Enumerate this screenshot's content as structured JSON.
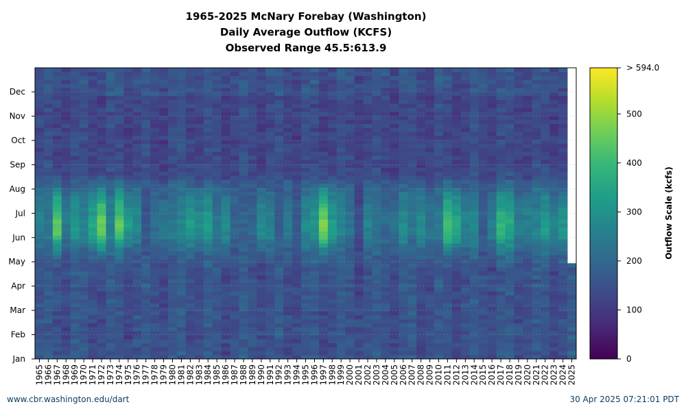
{
  "chart_data": {
    "type": "heatmap",
    "title": [
      "1965-2025 McNary Forebay (Washington)",
      "Daily Average Outflow (KCFS)",
      "Observed Range 45.5:613.9"
    ],
    "x": [
      "1965",
      "1966",
      "1967",
      "1968",
      "1969",
      "1970",
      "1971",
      "1972",
      "1973",
      "1974",
      "1975",
      "1976",
      "1977",
      "1978",
      "1979",
      "1980",
      "1981",
      "1982",
      "1983",
      "1984",
      "1985",
      "1986",
      "1987",
      "1988",
      "1989",
      "1990",
      "1991",
      "1992",
      "1993",
      "1994",
      "1995",
      "1996",
      "1997",
      "1998",
      "1999",
      "2000",
      "2001",
      "2002",
      "2003",
      "2004",
      "2005",
      "2006",
      "2007",
      "2008",
      "2009",
      "2010",
      "2011",
      "2012",
      "2013",
      "2014",
      "2015",
      "2016",
      "2017",
      "2018",
      "2019",
      "2020",
      "2021",
      "2022",
      "2023",
      "2024",
      "2025"
    ],
    "y_ticks": [
      "Jan",
      "Feb",
      "Mar",
      "Apr",
      "May",
      "Jun",
      "Jul",
      "Aug",
      "Sep",
      "Oct",
      "Nov",
      "Dec"
    ],
    "colorbar": {
      "label": "Outflow Scale (kcfs)",
      "ticks": [
        "0",
        "100",
        "200",
        "300",
        "400",
        "500",
        "> 594.0"
      ],
      "range": [
        0,
        594
      ],
      "colormap": [
        "#440154",
        "#482878",
        "#3e4a89",
        "#31688e",
        "#26828e",
        "#1f9e89",
        "#35b779",
        "#6ece58",
        "#b5de2b",
        "#fde725"
      ]
    },
    "peak_june_kcfs": [
      300,
      250,
      540,
      280,
      360,
      300,
      420,
      560,
      300,
      520,
      380,
      320,
      140,
      230,
      260,
      270,
      300,
      380,
      330,
      390,
      250,
      330,
      200,
      190,
      200,
      330,
      300,
      170,
      280,
      190,
      320,
      350,
      580,
      380,
      300,
      250,
      140,
      300,
      240,
      220,
      250,
      330,
      250,
      340,
      260,
      260,
      500,
      420,
      300,
      300,
      180,
      290,
      450,
      420,
      290,
      300,
      290,
      380,
      310,
      360,
      null
    ],
    "data_end": "30 Apr 2025",
    "grid": true
  },
  "footer": {
    "left": "www.cbr.washington.edu/dart",
    "right": "30 Apr 2025 07:21:01 PDT"
  }
}
